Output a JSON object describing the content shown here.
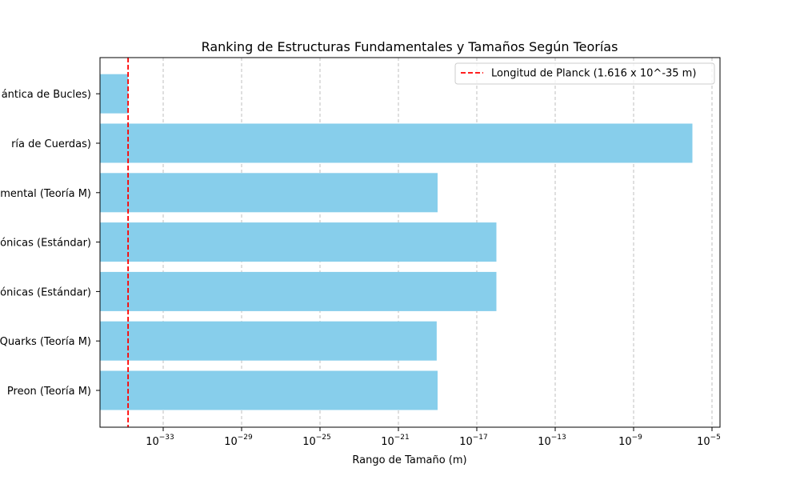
{
  "chart_data": {
    "type": "bar",
    "orientation": "horizontal",
    "title": "Ranking de Estructuras Fundamentales y Tamaños Según Teorías",
    "xlabel": "Rango de Tamaño (m)",
    "ylabel": "",
    "xscale": "log",
    "xlim": [
      3e-37,
      3e-05
    ],
    "grid": "x-dashed",
    "bar_color": "#87ceeb",
    "categories": [
      "Preon (Teoría M)",
      "Quarks (Teoría M)",
      "Partículas Subatómicas (Estándar)",
      "Partículas Subatómicas (Estándar)",
      "Estructura Fundamental (Teoría M)",
      "Cuerda (Teoría de Cuerdas)",
      "Espuma Cuántica (Gravedad Cuántica de Bucles)"
    ],
    "categories_visible": [
      " Preon (Teoría M)",
      "Quarks (Teoría M)",
      "ónicas (Estándar)",
      "ónicas (Estándar)",
      "mental (Teoría M)",
      "ría de Cuerdas)",
      "ántica de Bucles)"
    ],
    "values": [
      1e-19,
      9e-20,
      1e-16,
      1e-16,
      1e-19,
      1e-06,
      1.616e-35
    ],
    "xticks": [
      {
        "base": "10",
        "exp": "−33",
        "value": 1e-33
      },
      {
        "base": "10",
        "exp": "−29",
        "value": 1e-29
      },
      {
        "base": "10",
        "exp": "−25",
        "value": 1e-25
      },
      {
        "base": "10",
        "exp": "−21",
        "value": 1e-21
      },
      {
        "base": "10",
        "exp": "−17",
        "value": 1e-17
      },
      {
        "base": "10",
        "exp": "−13",
        "value": 1e-13
      },
      {
        "base": "10",
        "exp": "−9",
        "value": 1e-09
      },
      {
        "base": "10",
        "exp": "−5",
        "value": 1e-05
      }
    ],
    "reference_line": {
      "value": 1.616e-35,
      "label": "Longitud de Planck (1.616 x 10^-35 m)",
      "color": "#ff0000",
      "style": "dashed"
    },
    "legend_position": "top-right"
  }
}
